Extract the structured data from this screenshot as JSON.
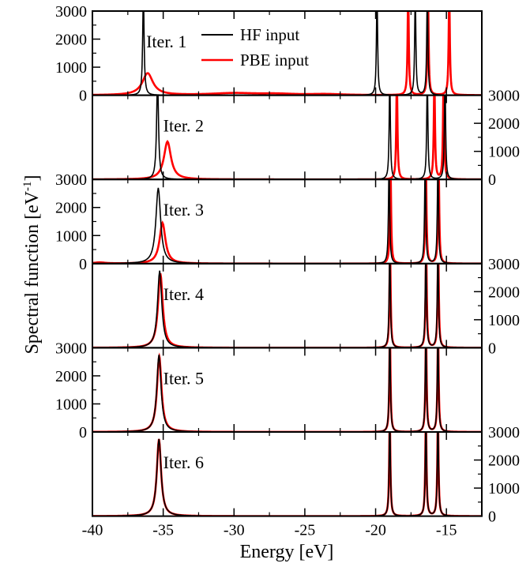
{
  "chart_data": {
    "type": "line",
    "xlabel": "Energy [eV]",
    "ylabel": "Spectral function [eV",
    "ylabel_sup": "-1",
    "ylabel_close": "]",
    "xlim": [
      -40,
      -12.5
    ],
    "x_ticks": [
      -40,
      -35,
      -30,
      -25,
      -20,
      -15
    ],
    "x_tick_labels": [
      "-40",
      "-35",
      "-30",
      "-25",
      "-20",
      "-15"
    ],
    "ylim": [
      0,
      3000
    ],
    "y_ticks": [
      0,
      1000,
      2000,
      3000
    ],
    "legend": {
      "position": "top-center",
      "entries": [
        {
          "label": "HF input",
          "color": "#000000"
        },
        {
          "label": "PBE input",
          "color": "#ff0000"
        }
      ]
    },
    "panels": [
      {
        "label": "Iter. 1",
        "y_axis_side": "left",
        "hf": [
          {
            "e": -36.4,
            "h": 3600,
            "w": 0.06
          },
          {
            "e": -19.9,
            "h": 3600,
            "w": 0.05
          },
          {
            "e": -17.2,
            "h": 3600,
            "w": 0.05
          },
          {
            "e": -16.35,
            "h": 3600,
            "w": 0.05
          }
        ],
        "pbe": [
          {
            "e": -36.1,
            "h": 780,
            "w": 0.45
          },
          {
            "e": -17.7,
            "h": 3600,
            "w": 0.05
          },
          {
            "e": -16.3,
            "h": 3600,
            "w": 0.05
          },
          {
            "e": -14.8,
            "h": 3600,
            "w": 0.05
          }
        ],
        "pbe_bumps": [
          {
            "e": -30.0,
            "h": 70,
            "w": 2.0
          },
          {
            "e": -27.0,
            "h": 40,
            "w": 1.5
          },
          {
            "e": -23.5,
            "h": 35,
            "w": 1.5
          }
        ]
      },
      {
        "label": "Iter. 2",
        "y_axis_side": "right",
        "hf": [
          {
            "e": -35.4,
            "h": 3600,
            "w": 0.08
          },
          {
            "e": -19.0,
            "h": 3600,
            "w": 0.05
          },
          {
            "e": -16.35,
            "h": 3600,
            "w": 0.05
          },
          {
            "e": -15.1,
            "h": 3600,
            "w": 0.05
          }
        ],
        "pbe": [
          {
            "e": -34.7,
            "h": 1350,
            "w": 0.3
          },
          {
            "e": -18.5,
            "h": 3600,
            "w": 0.05
          },
          {
            "e": -15.85,
            "h": 3600,
            "w": 0.05
          },
          {
            "e": -15.2,
            "h": 3600,
            "w": 0.05
          }
        ],
        "pbe_bumps": []
      },
      {
        "label": "Iter. 3",
        "y_axis_side": "left",
        "hf": [
          {
            "e": -35.35,
            "h": 2700,
            "w": 0.2
          },
          {
            "e": -19.05,
            "h": 3600,
            "w": 0.05
          },
          {
            "e": -16.5,
            "h": 3600,
            "w": 0.05
          },
          {
            "e": -15.6,
            "h": 3600,
            "w": 0.05
          }
        ],
        "pbe": [
          {
            "e": -35.05,
            "h": 1450,
            "w": 0.25
          },
          {
            "e": -18.95,
            "h": 3600,
            "w": 0.05
          },
          {
            "e": -16.45,
            "h": 3600,
            "w": 0.05
          },
          {
            "e": -15.55,
            "h": 3600,
            "w": 0.05
          }
        ],
        "pbe_bumps": [
          {
            "e": -39.5,
            "h": 40,
            "w": 0.5
          }
        ]
      },
      {
        "label": "Iter. 4",
        "y_axis_side": "right",
        "hf": [
          {
            "e": -35.25,
            "h": 2750,
            "w": 0.18
          },
          {
            "e": -19.0,
            "h": 3600,
            "w": 0.05
          },
          {
            "e": -16.45,
            "h": 3600,
            "w": 0.05
          },
          {
            "e": -15.6,
            "h": 3600,
            "w": 0.05
          }
        ],
        "pbe": [
          {
            "e": -35.2,
            "h": 2650,
            "w": 0.2
          },
          {
            "e": -18.98,
            "h": 3600,
            "w": 0.05
          },
          {
            "e": -16.43,
            "h": 3600,
            "w": 0.05
          },
          {
            "e": -15.58,
            "h": 3600,
            "w": 0.05
          }
        ],
        "pbe_bumps": []
      },
      {
        "label": "Iter. 5",
        "y_axis_side": "left",
        "hf": [
          {
            "e": -35.3,
            "h": 2750,
            "w": 0.18
          },
          {
            "e": -19.0,
            "h": 3600,
            "w": 0.05
          },
          {
            "e": -16.45,
            "h": 3600,
            "w": 0.05
          },
          {
            "e": -15.6,
            "h": 3600,
            "w": 0.05
          }
        ],
        "pbe": [
          {
            "e": -35.28,
            "h": 2700,
            "w": 0.19
          },
          {
            "e": -18.99,
            "h": 3600,
            "w": 0.05
          },
          {
            "e": -16.44,
            "h": 3600,
            "w": 0.05
          },
          {
            "e": -15.59,
            "h": 3600,
            "w": 0.05
          }
        ],
        "pbe_bumps": []
      },
      {
        "label": "Iter. 6",
        "y_axis_side": "right",
        "hf": [
          {
            "e": -35.3,
            "h": 2750,
            "w": 0.18
          },
          {
            "e": -19.0,
            "h": 3600,
            "w": 0.05
          },
          {
            "e": -16.45,
            "h": 3600,
            "w": 0.05
          },
          {
            "e": -15.6,
            "h": 3600,
            "w": 0.05
          }
        ],
        "pbe": [
          {
            "e": -35.3,
            "h": 2750,
            "w": 0.18
          },
          {
            "e": -19.0,
            "h": 3600,
            "w": 0.05
          },
          {
            "e": -16.45,
            "h": 3600,
            "w": 0.05
          },
          {
            "e": -15.6,
            "h": 3600,
            "w": 0.05
          }
        ],
        "pbe_bumps": []
      }
    ]
  }
}
